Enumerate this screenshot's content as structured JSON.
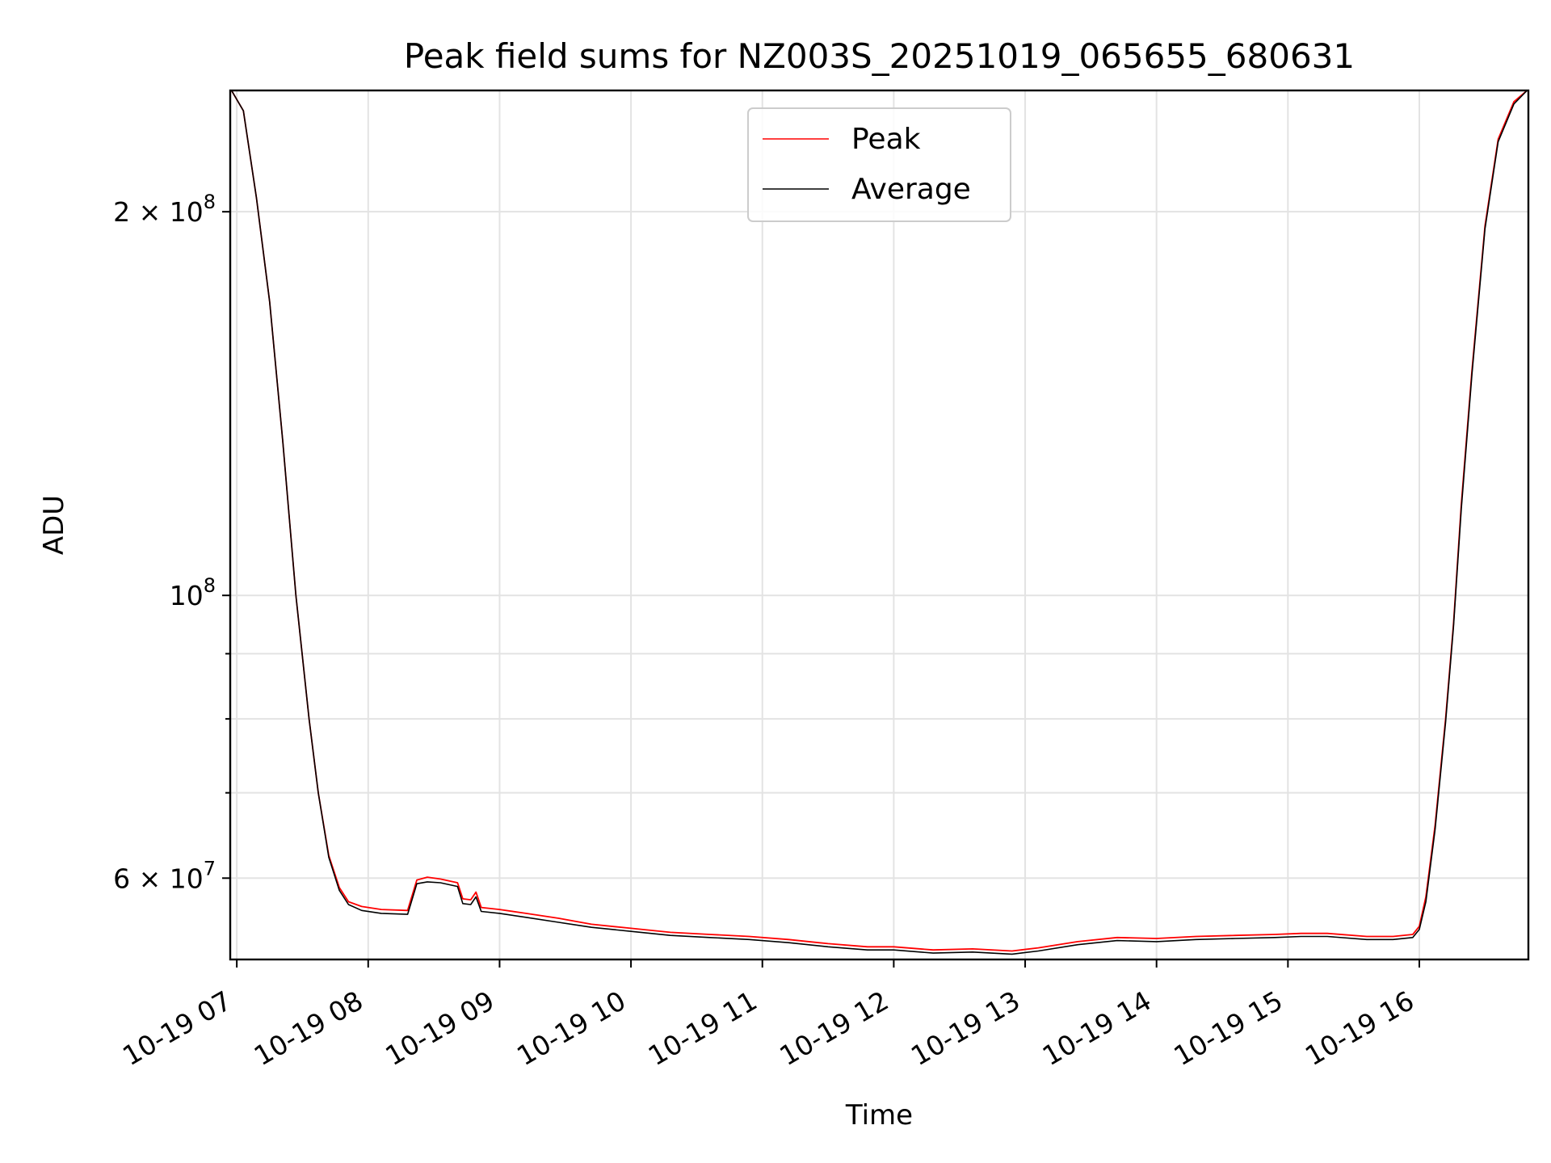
{
  "chart_data": {
    "type": "line",
    "title": "Peak field sums for NZ003S_20251019_065655_680631",
    "xlabel": "Time",
    "ylabel": "ADU",
    "yscale": "log",
    "xlim": [
      6.95,
      16.83
    ],
    "ylim": [
      51800000,
      249000000
    ],
    "xticks": [
      {
        "value": 7,
        "label": "10-19 07"
      },
      {
        "value": 8,
        "label": "10-19 08"
      },
      {
        "value": 9,
        "label": "10-19 09"
      },
      {
        "value": 10,
        "label": "10-19 10"
      },
      {
        "value": 11,
        "label": "10-19 11"
      },
      {
        "value": 12,
        "label": "10-19 12"
      },
      {
        "value": 13,
        "label": "10-19 13"
      },
      {
        "value": 14,
        "label": "10-19 14"
      },
      {
        "value": 15,
        "label": "10-19 15"
      },
      {
        "value": 16,
        "label": "10-19 16"
      }
    ],
    "yticks_major": [
      {
        "value": 60000000,
        "label_base": "6 × 10",
        "label_exp": "7"
      },
      {
        "value": 100000000,
        "label_base": "10",
        "label_exp": "8"
      },
      {
        "value": 200000000,
        "label_base": "2 × 10",
        "label_exp": "8"
      }
    ],
    "yticks_minor": [
      70000000,
      80000000,
      90000000
    ],
    "legend_position": "upper center",
    "x_units": "hours since 2025-10-19 00:00",
    "series": [
      {
        "name": "Peak",
        "color": "#ff0000",
        "x": [
          6.96,
          7.05,
          7.15,
          7.25,
          7.35,
          7.45,
          7.55,
          7.62,
          7.7,
          7.78,
          7.85,
          7.95,
          8.1,
          8.3,
          8.37,
          8.45,
          8.55,
          8.68,
          8.72,
          8.78,
          8.82,
          8.86,
          9.0,
          9.2,
          9.45,
          9.7,
          10.0,
          10.3,
          10.6,
          10.9,
          11.2,
          11.5,
          11.8,
          12.0,
          12.3,
          12.6,
          12.9,
          13.1,
          13.4,
          13.7,
          14.0,
          14.3,
          14.6,
          14.9,
          15.1,
          15.3,
          15.6,
          15.8,
          15.95,
          16.0,
          16.05,
          16.12,
          16.2,
          16.26,
          16.32,
          16.4,
          16.5,
          16.6,
          16.72,
          16.82
        ],
        "values": [
          249000000,
          240000000,
          205000000,
          170000000,
          132000000,
          100000000,
          80000000,
          70000000,
          62500000,
          59000000,
          57500000,
          57000000,
          56700000,
          56600000,
          59800000,
          60100000,
          59900000,
          59500000,
          57800000,
          57700000,
          58500000,
          56900000,
          56700000,
          56300000,
          55800000,
          55200000,
          54800000,
          54400000,
          54200000,
          54000000,
          53700000,
          53300000,
          53000000,
          53000000,
          52700000,
          52800000,
          52600000,
          52900000,
          53500000,
          53900000,
          53800000,
          54000000,
          54100000,
          54200000,
          54300000,
          54300000,
          54000000,
          54000000,
          54200000,
          55000000,
          58000000,
          66000000,
          80000000,
          95000000,
          118000000,
          150000000,
          195000000,
          228000000,
          244000000,
          249000000
        ]
      },
      {
        "name": "Average",
        "color": "#000000",
        "x": [
          6.96,
          7.05,
          7.15,
          7.25,
          7.35,
          7.45,
          7.55,
          7.62,
          7.7,
          7.78,
          7.85,
          7.95,
          8.1,
          8.3,
          8.37,
          8.45,
          8.55,
          8.68,
          8.72,
          8.78,
          8.82,
          8.86,
          9.0,
          9.2,
          9.45,
          9.7,
          10.0,
          10.3,
          10.6,
          10.9,
          11.2,
          11.5,
          11.8,
          12.0,
          12.3,
          12.6,
          12.9,
          13.1,
          13.4,
          13.7,
          14.0,
          14.3,
          14.6,
          14.9,
          15.1,
          15.3,
          15.6,
          15.8,
          15.95,
          16.0,
          16.05,
          16.12,
          16.2,
          16.26,
          16.32,
          16.4,
          16.5,
          16.6,
          16.72,
          16.82
        ],
        "values": [
          249000000,
          240000000,
          205000000,
          170000000,
          132000000,
          100000000,
          80000000,
          70000000,
          62300000,
          58700000,
          57200000,
          56600000,
          56300000,
          56200000,
          59400000,
          59600000,
          59500000,
          59100000,
          57300000,
          57200000,
          58000000,
          56500000,
          56300000,
          55900000,
          55400000,
          54900000,
          54500000,
          54100000,
          53900000,
          53700000,
          53400000,
          53000000,
          52700000,
          52700000,
          52400000,
          52500000,
          52300000,
          52600000,
          53200000,
          53600000,
          53500000,
          53700000,
          53800000,
          53900000,
          54000000,
          54000000,
          53700000,
          53700000,
          53900000,
          54700000,
          57500000,
          65500000,
          79500000,
          94500000,
          117000000,
          149000000,
          194000000,
          227000000,
          243000000,
          249000000
        ]
      }
    ]
  }
}
